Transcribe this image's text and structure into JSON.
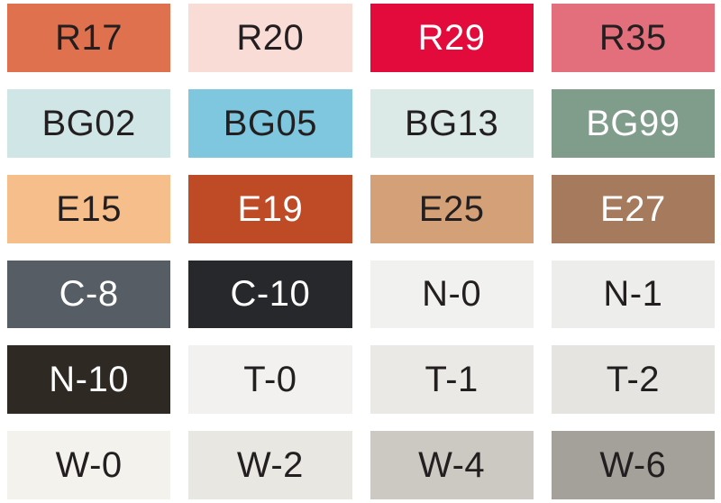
{
  "page": {
    "background": "#ffffff",
    "grid": {
      "columns": 4,
      "rows": 6
    }
  },
  "swatches": [
    {
      "code": "R17",
      "bg": "#e0714e",
      "fg": "#231f20"
    },
    {
      "code": "R20",
      "bg": "#fadcd6",
      "fg": "#231f20"
    },
    {
      "code": "R29",
      "bg": "#e30b3c",
      "fg": "#ffffff"
    },
    {
      "code": "R35",
      "bg": "#e36f7d",
      "fg": "#231f20"
    },
    {
      "code": "BG02",
      "bg": "#cfe5e6",
      "fg": "#231f20"
    },
    {
      "code": "BG05",
      "bg": "#7ec7df",
      "fg": "#231f20"
    },
    {
      "code": "BG13",
      "bg": "#dbeae7",
      "fg": "#231f20"
    },
    {
      "code": "BG99",
      "bg": "#809d8c",
      "fg": "#ffffff"
    },
    {
      "code": "E15",
      "bg": "#f6be8b",
      "fg": "#231f20"
    },
    {
      "code": "E19",
      "bg": "#bf4a26",
      "fg": "#ffffff"
    },
    {
      "code": "E25",
      "bg": "#d3a078",
      "fg": "#231f20"
    },
    {
      "code": "E27",
      "bg": "#a57a5d",
      "fg": "#ffffff"
    },
    {
      "code": "C-8",
      "bg": "#575d64",
      "fg": "#ffffff"
    },
    {
      "code": "C-10",
      "bg": "#26282c",
      "fg": "#ffffff"
    },
    {
      "code": "N-0",
      "bg": "#f1f1ef",
      "fg": "#231f20"
    },
    {
      "code": "N-1",
      "bg": "#ededeb",
      "fg": "#231f20"
    },
    {
      "code": "N-10",
      "bg": "#2f2923",
      "fg": "#ffffff"
    },
    {
      "code": "T-0",
      "bg": "#f2f1ef",
      "fg": "#231f20"
    },
    {
      "code": "T-1",
      "bg": "#ebe9e5",
      "fg": "#231f20"
    },
    {
      "code": "T-2",
      "bg": "#e6e4e0",
      "fg": "#231f20"
    },
    {
      "code": "W-0",
      "bg": "#f3f2ed",
      "fg": "#231f20"
    },
    {
      "code": "W-2",
      "bg": "#e8e7e2",
      "fg": "#231f20"
    },
    {
      "code": "W-4",
      "bg": "#ccc9c3",
      "fg": "#231f20"
    },
    {
      "code": "W-6",
      "bg": "#a4a19b",
      "fg": "#231f20"
    }
  ]
}
